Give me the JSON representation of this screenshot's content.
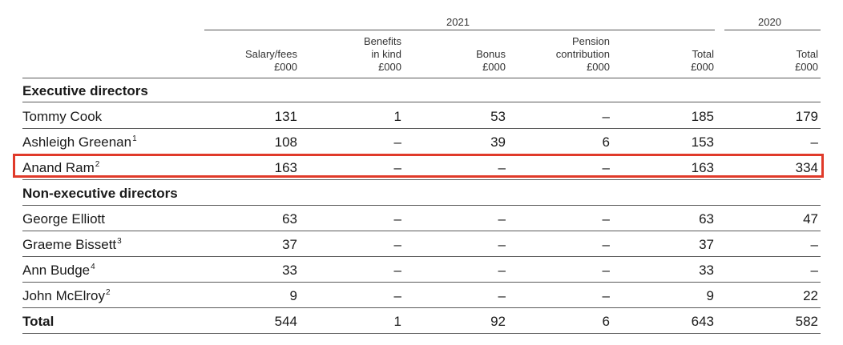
{
  "year_headers": {
    "current": "2021",
    "prior": "2020"
  },
  "columns": [
    {
      "line1": "Salary/fees",
      "line2": "£000"
    },
    {
      "line0": "Benefits",
      "line1": "in kind",
      "line2": "£000"
    },
    {
      "line1": "Bonus",
      "line2": "£000"
    },
    {
      "line0": "Pension",
      "line1": "contribution",
      "line2": "£000"
    },
    {
      "line1": "Total",
      "line2": "£000"
    },
    {
      "line1": "Total",
      "line2": "£000"
    }
  ],
  "sections": {
    "executive": "Executive directors",
    "non_executive": "Non-executive directors"
  },
  "rows": [
    {
      "name": "Tommy Cook",
      "note": "",
      "values": [
        "131",
        "1",
        "53",
        "–",
        "185",
        "179"
      ]
    },
    {
      "name": "Ashleigh Greenan",
      "note": "1",
      "values": [
        "108",
        "–",
        "39",
        "6",
        "153",
        "–"
      ]
    },
    {
      "name": "Anand Ram",
      "note": "2",
      "values": [
        "163",
        "–",
        "–",
        "–",
        "163",
        "334"
      ]
    },
    {
      "name": "George Elliott",
      "note": "",
      "values": [
        "63",
        "–",
        "–",
        "–",
        "63",
        "47"
      ]
    },
    {
      "name": "Graeme Bissett",
      "note": "3",
      "values": [
        "37",
        "–",
        "–",
        "–",
        "37",
        "–"
      ]
    },
    {
      "name": "Ann Budge",
      "note": "4",
      "values": [
        "33",
        "–",
        "–",
        "–",
        "33",
        "–"
      ]
    },
    {
      "name": "John McElroy",
      "note": "2",
      "values": [
        "9",
        "–",
        "–",
        "–",
        "9",
        "22"
      ]
    }
  ],
  "total": {
    "label": "Total",
    "values": [
      "544",
      "1",
      "92",
      "6",
      "643",
      "582"
    ]
  },
  "highlight_color": "#e03a2a"
}
